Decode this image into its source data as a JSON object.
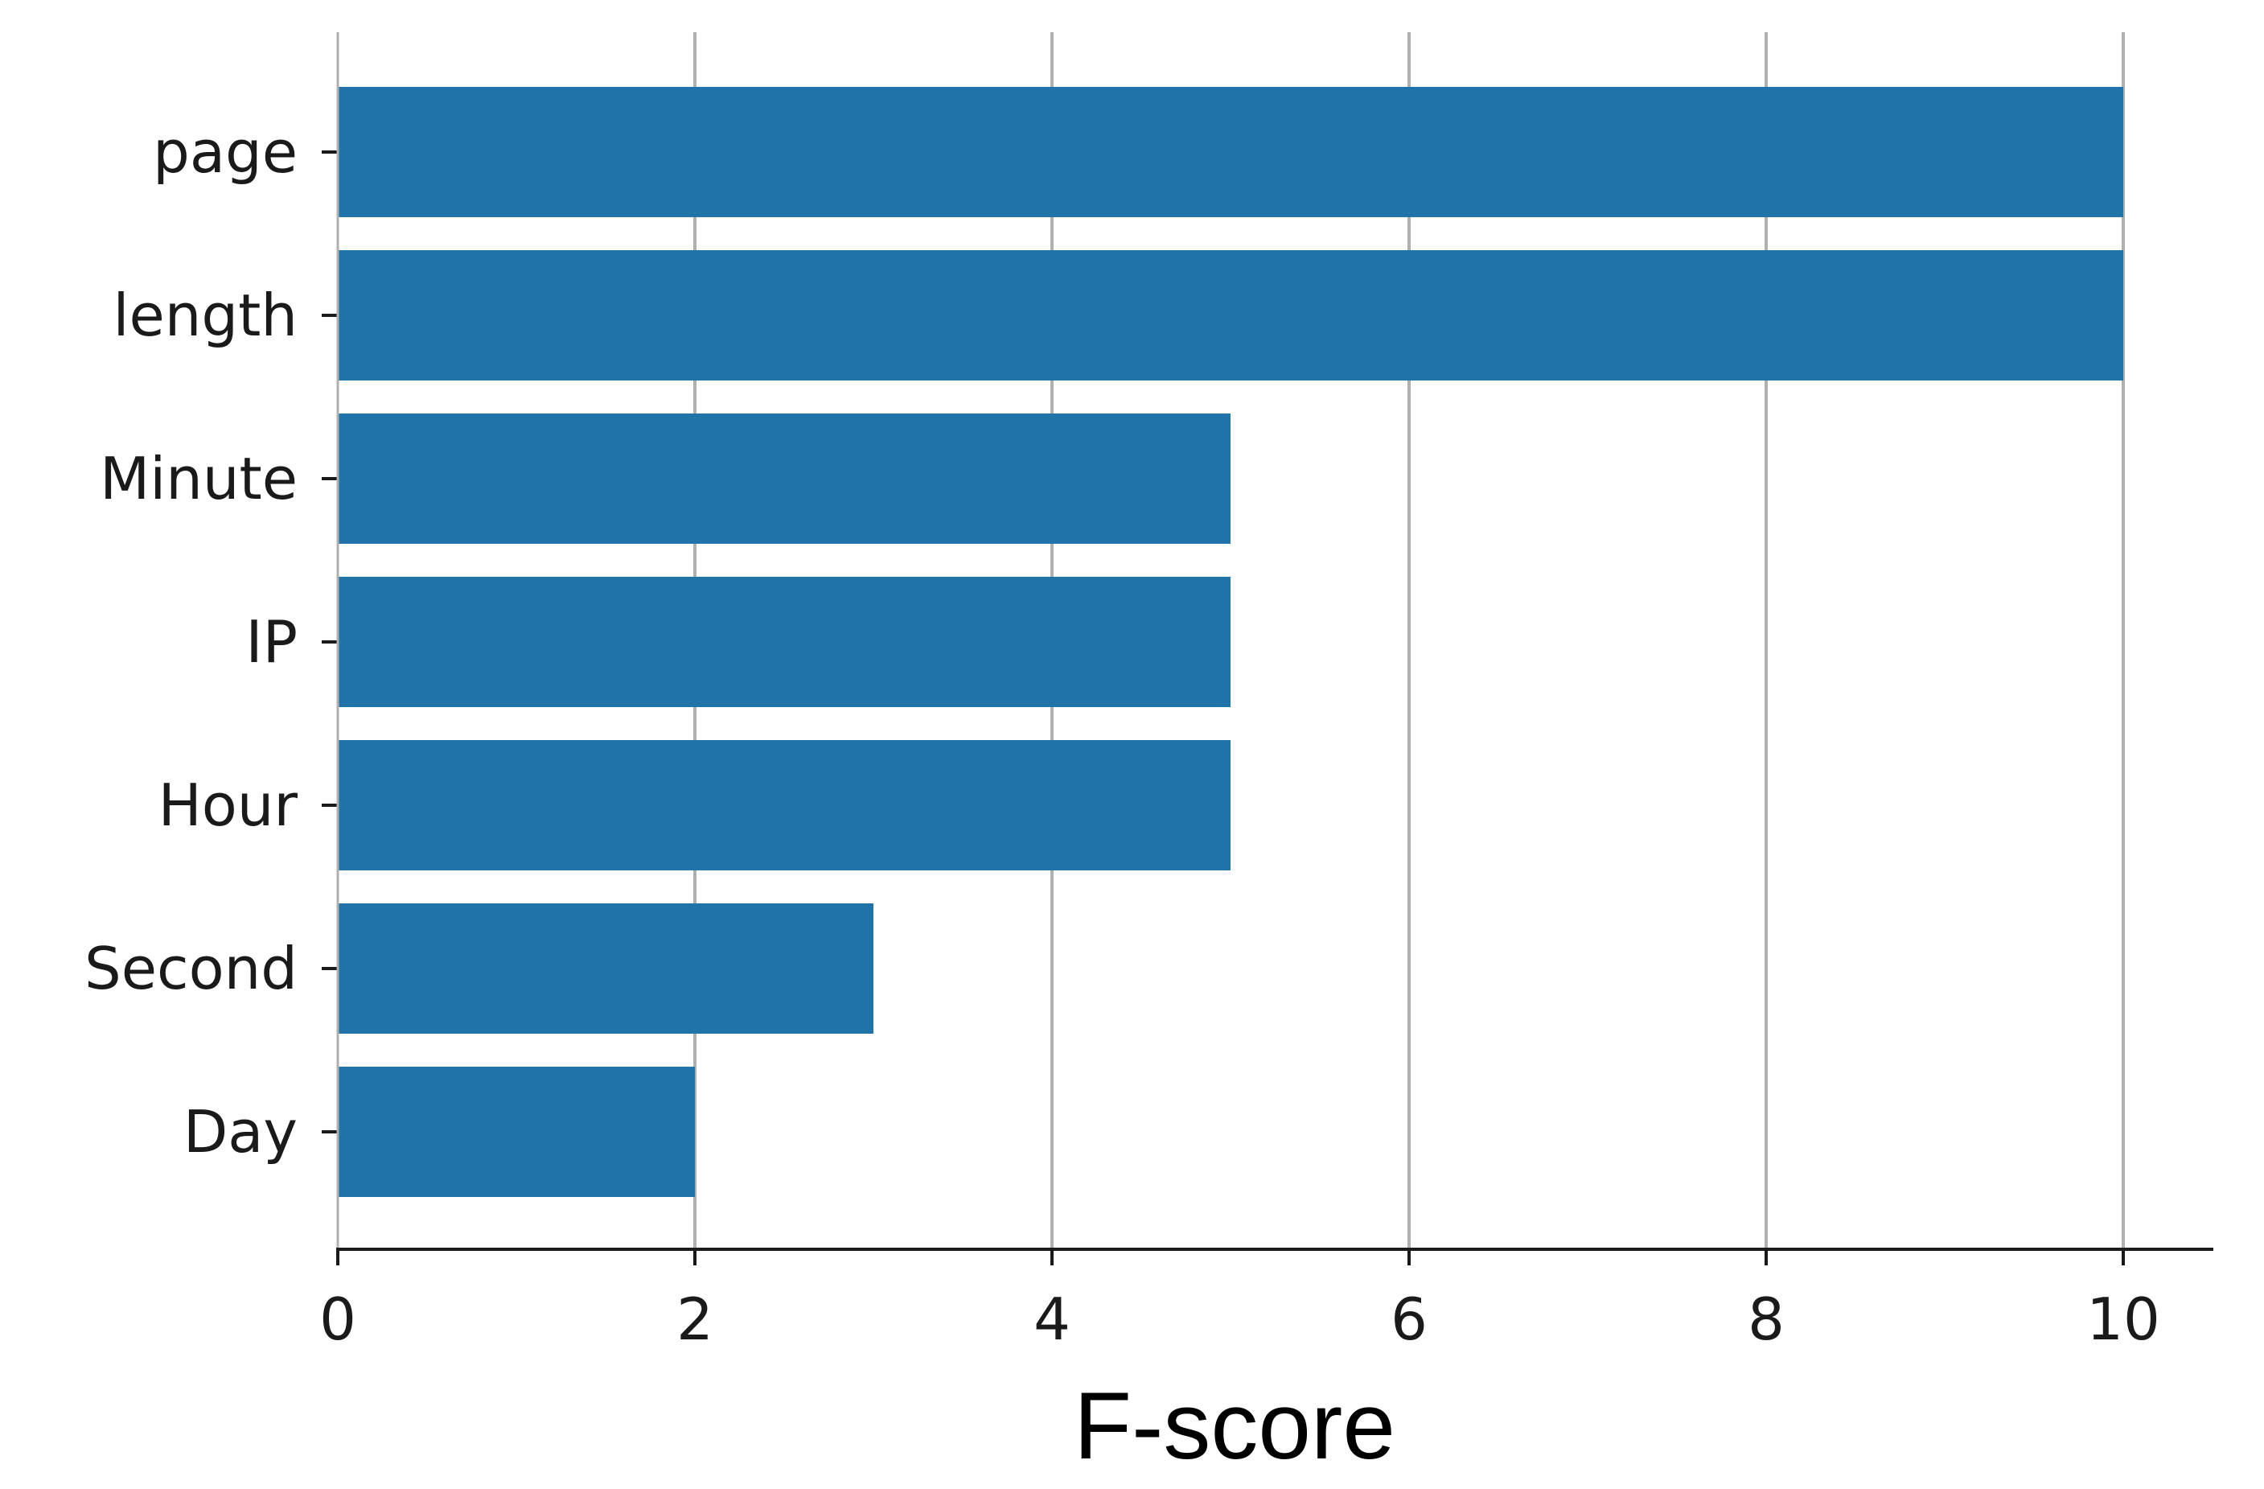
{
  "chart_data": {
    "type": "bar",
    "orientation": "horizontal",
    "categories": [
      "page",
      "length",
      "Minute",
      "IP",
      "Hour",
      "Second",
      "Day"
    ],
    "values": [
      10,
      10,
      5,
      5,
      5,
      3,
      2
    ],
    "title": "",
    "xlabel": "F-score",
    "ylabel": "",
    "xlim": [
      0,
      10.5
    ],
    "xticks": [
      0,
      2,
      4,
      6,
      8,
      10
    ],
    "grid": "vertical",
    "bar_color": "#2074aa",
    "grid_color": "#b0b0b0",
    "axis_color": "#1a1a1a"
  }
}
